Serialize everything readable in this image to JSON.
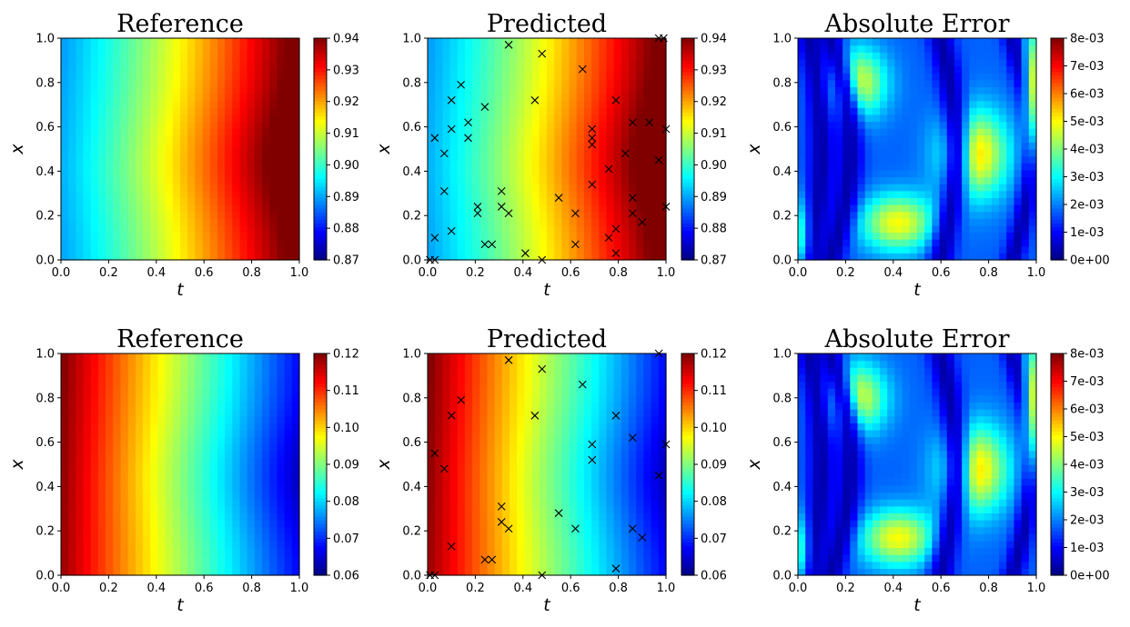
{
  "figure": {
    "x_tick_labels": [
      "0.0",
      "0.2",
      "0.4",
      "0.6",
      "0.8",
      "1.0"
    ],
    "y_tick_labels": [
      "0.0",
      "0.2",
      "0.4",
      "0.6",
      "0.8",
      "1.0"
    ]
  },
  "chart_data": [
    {
      "type": "heatmap",
      "title": "Reference",
      "xlabel": "t",
      "ylabel": "x",
      "xlim": [
        0,
        1
      ],
      "ylim": [
        0,
        1
      ],
      "colormap": "jet",
      "field": "u1",
      "clim": [
        0.87,
        0.94
      ],
      "colorbar_ticks": [
        "0.87",
        "0.88",
        "0.89",
        "0.90",
        "0.91",
        "0.92",
        "0.93",
        "0.94"
      ],
      "markers": []
    },
    {
      "type": "heatmap",
      "title": "Predicted",
      "xlabel": "t",
      "ylabel": "x",
      "xlim": [
        0,
        1
      ],
      "ylim": [
        0,
        1
      ],
      "colormap": "jet",
      "field": "u1",
      "clim": [
        0.87,
        0.94
      ],
      "colorbar_ticks": [
        "0.87",
        "0.88",
        "0.89",
        "0.90",
        "0.91",
        "0.92",
        "0.93",
        "0.94"
      ],
      "markers": "top_points"
    },
    {
      "type": "heatmap",
      "title": "Absolute Error",
      "xlabel": "t",
      "ylabel": "x",
      "xlim": [
        0,
        1
      ],
      "ylim": [
        0,
        1
      ],
      "colormap": "jet",
      "field": "error",
      "clim": [
        0,
        0.008
      ],
      "colorbar_ticks": [
        "0e+00",
        "1e-03",
        "2e-03",
        "3e-03",
        "4e-03",
        "5e-03",
        "6e-03",
        "7e-03",
        "8e-03"
      ],
      "markers": []
    },
    {
      "type": "heatmap",
      "title": "Reference",
      "xlabel": "t",
      "ylabel": "x",
      "xlim": [
        0,
        1
      ],
      "ylim": [
        0,
        1
      ],
      "colormap": "jet",
      "field": "u2",
      "clim": [
        0.06,
        0.12
      ],
      "colorbar_ticks": [
        "0.06",
        "0.07",
        "0.08",
        "0.09",
        "0.10",
        "0.11",
        "0.12"
      ],
      "markers": []
    },
    {
      "type": "heatmap",
      "title": "Predicted",
      "xlabel": "t",
      "ylabel": "x",
      "xlim": [
        0,
        1
      ],
      "ylim": [
        0,
        1
      ],
      "colormap": "jet",
      "field": "u2",
      "clim": [
        0.06,
        0.12
      ],
      "colorbar_ticks": [
        "0.06",
        "0.07",
        "0.08",
        "0.09",
        "0.10",
        "0.11",
        "0.12"
      ],
      "markers": "bottom_points"
    },
    {
      "type": "heatmap",
      "title": "Absolute Error",
      "xlabel": "t",
      "ylabel": "x",
      "xlim": [
        0,
        1
      ],
      "ylim": [
        0,
        1
      ],
      "colormap": "jet",
      "field": "error",
      "clim": [
        0,
        0.008
      ],
      "colorbar_ticks": [
        "0e+00",
        "1e-03",
        "2e-03",
        "3e-03",
        "4e-03",
        "5e-03",
        "6e-03",
        "7e-03",
        "8e-03"
      ],
      "markers": []
    }
  ],
  "top_points": [
    [
      0.01,
      0.0
    ],
    [
      0.03,
      0.0
    ],
    [
      0.03,
      0.1
    ],
    [
      0.03,
      0.55
    ],
    [
      0.07,
      0.31
    ],
    [
      0.07,
      0.48
    ],
    [
      0.1,
      0.13
    ],
    [
      0.1,
      0.59
    ],
    [
      0.1,
      0.72
    ],
    [
      0.14,
      0.79
    ],
    [
      0.17,
      0.55
    ],
    [
      0.17,
      0.62
    ],
    [
      0.21,
      0.21
    ],
    [
      0.21,
      0.24
    ],
    [
      0.24,
      0.07
    ],
    [
      0.24,
      0.69
    ],
    [
      0.27,
      0.07
    ],
    [
      0.31,
      0.24
    ],
    [
      0.31,
      0.31
    ],
    [
      0.34,
      0.21
    ],
    [
      0.34,
      0.97
    ],
    [
      0.41,
      0.03
    ],
    [
      0.45,
      0.72
    ],
    [
      0.48,
      0.0
    ],
    [
      0.48,
      0.93
    ],
    [
      0.55,
      0.28
    ],
    [
      0.62,
      0.07
    ],
    [
      0.62,
      0.21
    ],
    [
      0.65,
      0.86
    ],
    [
      0.69,
      0.34
    ],
    [
      0.69,
      0.52
    ],
    [
      0.69,
      0.55
    ],
    [
      0.69,
      0.59
    ],
    [
      0.76,
      0.1
    ],
    [
      0.76,
      0.41
    ],
    [
      0.79,
      0.03
    ],
    [
      0.79,
      0.14
    ],
    [
      0.79,
      0.72
    ],
    [
      0.83,
      0.48
    ],
    [
      0.86,
      0.21
    ],
    [
      0.86,
      0.28
    ],
    [
      0.86,
      0.62
    ],
    [
      0.9,
      0.17
    ],
    [
      0.93,
      0.62
    ],
    [
      0.97,
      0.45
    ],
    [
      0.97,
      1.0
    ],
    [
      0.99,
      1.0
    ],
    [
      1.0,
      0.59
    ],
    [
      1.0,
      0.24
    ]
  ],
  "bottom_points": [
    [
      0.01,
      0.0
    ],
    [
      0.03,
      0.0
    ],
    [
      0.03,
      0.55
    ],
    [
      0.07,
      0.48
    ],
    [
      0.1,
      0.13
    ],
    [
      0.1,
      0.72
    ],
    [
      0.14,
      0.79
    ],
    [
      0.24,
      0.07
    ],
    [
      0.27,
      0.07
    ],
    [
      0.31,
      0.24
    ],
    [
      0.31,
      0.31
    ],
    [
      0.34,
      0.21
    ],
    [
      0.34,
      0.97
    ],
    [
      0.45,
      0.72
    ],
    [
      0.48,
      0.0
    ],
    [
      0.48,
      0.93
    ],
    [
      0.55,
      0.28
    ],
    [
      0.62,
      0.21
    ],
    [
      0.65,
      0.86
    ],
    [
      0.69,
      0.52
    ],
    [
      0.69,
      0.59
    ],
    [
      0.79,
      0.03
    ],
    [
      0.79,
      0.72
    ],
    [
      0.86,
      0.21
    ],
    [
      0.86,
      0.62
    ],
    [
      0.9,
      0.17
    ],
    [
      0.97,
      0.45
    ],
    [
      0.97,
      1.0
    ],
    [
      1.0,
      0.59
    ]
  ]
}
